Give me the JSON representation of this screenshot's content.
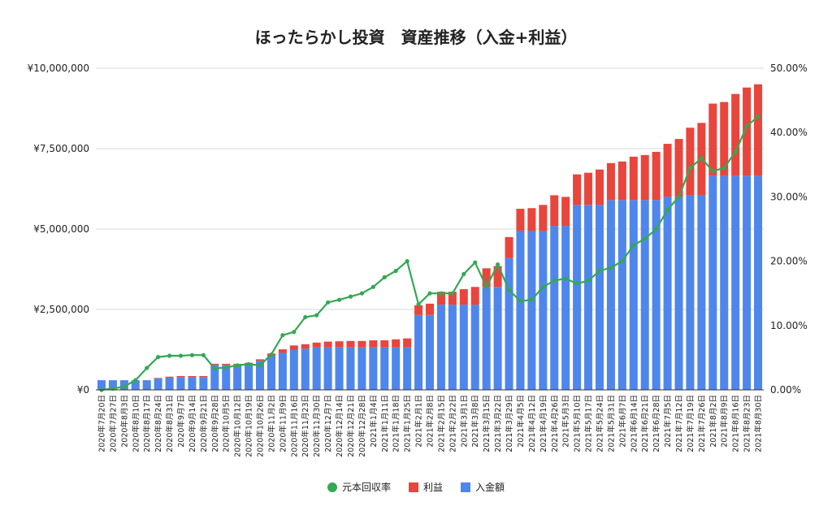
{
  "chart_data": {
    "type": "bar",
    "title": "ほったらかし投資　資産推移（入金+利益）",
    "xlabel": "",
    "ylabel": "",
    "ylim": [
      0,
      10000000
    ],
    "y2lim": [
      0,
      50
    ],
    "y_ticks": [
      "¥0",
      "¥2,500,000",
      "¥5,000,000",
      "¥7,500,000",
      "¥10,000,000"
    ],
    "y2_ticks": [
      "0.00%",
      "10.00%",
      "20.00%",
      "30.00%",
      "40.00%",
      "50.00%"
    ],
    "grid": true,
    "legend_position": "bottom",
    "categories": [
      "2020年7月20日",
      "2020年7月27日",
      "2020年8月3日",
      "2020年8月10日",
      "2020年8月17日",
      "2020年8月24日",
      "2020年8月31日",
      "2020年9月7日",
      "2020年9月14日",
      "2020年9月21日",
      "2020年9月28日",
      "2020年10月5日",
      "2020年10月12日",
      "2020年10月19日",
      "2020年10月26日",
      "2020年11月2日",
      "2020年11月9日",
      "2020年11月16日",
      "2020年11月23日",
      "2020年11月30日",
      "2020年12月7日",
      "2020年12月14日",
      "2020年12月21日",
      "2020年12月28日",
      "2021年1月4日",
      "2021年1月11日",
      "2021年1月18日",
      "2021年1月25日",
      "2021年2月1日",
      "2021年2月8日",
      "2021年2月15日",
      "2021年2月22日",
      "2021年3月1日",
      "2021年3月8日",
      "2021年3月15日",
      "2021年3月22日",
      "2021年3月29日",
      "2021年4月5日",
      "2021年4月12日",
      "2021年4月19日",
      "2021年4月26日",
      "2021年5月3日",
      "2021年5月10日",
      "2021年5月17日",
      "2021年5月24日",
      "2021年5月31日",
      "2021年6月7日",
      "2021年6月14日",
      "2021年6月21日",
      "2021年6月28日",
      "2021年7月5日",
      "2021年7月12日",
      "2021年7月19日",
      "2021年7月26日",
      "2021年8月2日",
      "2021年8月9日",
      "2021年8月16日",
      "2021年8月23日",
      "2021年8月30日"
    ],
    "series": [
      {
        "name": "入金額",
        "type": "bar",
        "axis": "left",
        "color": "#4f86ec",
        "values": [
          300000,
          300000,
          300000,
          300000,
          300000,
          350000,
          380000,
          400000,
          400000,
          400000,
          780000,
          780000,
          780000,
          800000,
          900000,
          1050000,
          1150000,
          1250000,
          1280000,
          1320000,
          1320000,
          1320000,
          1320000,
          1320000,
          1320000,
          1320000,
          1320000,
          1320000,
          2330000,
          2330000,
          2650000,
          2650000,
          2650000,
          2650000,
          3200000,
          3200000,
          4100000,
          4950000,
          4950000,
          4950000,
          5100000,
          5100000,
          5750000,
          5750000,
          5750000,
          5900000,
          5900000,
          5900000,
          5900000,
          5900000,
          6000000,
          6000000,
          6050000,
          6050000,
          6650000,
          6650000,
          6650000,
          6650000,
          6650000
        ]
      },
      {
        "name": "利益",
        "type": "bar",
        "axis": "left",
        "color": "#e8453c",
        "values": [
          0,
          0,
          0,
          0,
          0,
          20000,
          30000,
          30000,
          30000,
          30000,
          30000,
          30000,
          30000,
          40000,
          50000,
          80000,
          110000,
          130000,
          140000,
          150000,
          180000,
          190000,
          200000,
          200000,
          220000,
          220000,
          250000,
          280000,
          300000,
          350000,
          400000,
          400000,
          480000,
          550000,
          580000,
          650000,
          650000,
          680000,
          700000,
          800000,
          950000,
          900000,
          950000,
          1000000,
          1100000,
          1150000,
          1200000,
          1350000,
          1400000,
          1500000,
          1650000,
          1800000,
          2100000,
          2250000,
          2250000,
          2300000,
          2550000,
          2750000,
          2850000
        ]
      },
      {
        "name": "元本回収率",
        "type": "line",
        "axis": "right",
        "color": "#34a853",
        "values": [
          0.0,
          0.2,
          0.5,
          1.5,
          3.4,
          5.1,
          5.3,
          5.3,
          5.4,
          5.4,
          3.3,
          3.5,
          3.8,
          4.0,
          3.8,
          5.5,
          8.5,
          9.0,
          11.3,
          11.6,
          13.6,
          14.0,
          14.5,
          15.0,
          16.0,
          17.5,
          18.5,
          20.0,
          13.3,
          15.0,
          15.0,
          15.0,
          18.0,
          19.8,
          16.0,
          19.5,
          15.5,
          13.8,
          14.0,
          16.0,
          17.0,
          17.3,
          16.5,
          17.0,
          18.5,
          19.0,
          20.0,
          22.5,
          23.5,
          25.0,
          28.0,
          30.0,
          34.5,
          36.0,
          34.0,
          34.5,
          37.0,
          41.0,
          42.5
        ]
      }
    ]
  }
}
